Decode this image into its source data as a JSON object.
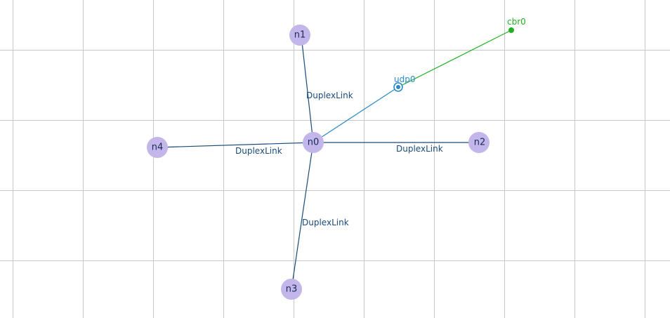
{
  "colors": {
    "background": "#ffffff",
    "grid": "#c8c8c8",
    "node_fill": "#c2b6ea",
    "node_text": "#1a2a5a",
    "link": "#1a4a7a",
    "agent": "#2a8ac8",
    "application": "#22b022"
  },
  "nodes": [
    {
      "id": "n0",
      "label": "n0"
    },
    {
      "id": "n1",
      "label": "n1"
    },
    {
      "id": "n2",
      "label": "n2"
    },
    {
      "id": "n3",
      "label": "n3"
    },
    {
      "id": "n4",
      "label": "n4"
    }
  ],
  "links": [
    {
      "from": "n0",
      "to": "n1",
      "label": "DuplexLink"
    },
    {
      "from": "n0",
      "to": "n2",
      "label": "DuplexLink"
    },
    {
      "from": "n0",
      "to": "n3",
      "label": "DuplexLink"
    },
    {
      "from": "n0",
      "to": "n4",
      "label": "DuplexLink"
    }
  ],
  "agent": {
    "id": "udp0",
    "label": "udp0",
    "attached_to": "n0",
    "icon": "agent-target-icon"
  },
  "application": {
    "id": "cbr0",
    "label": "cbr0",
    "attached_to": "udp0",
    "icon": "application-dot-icon"
  }
}
